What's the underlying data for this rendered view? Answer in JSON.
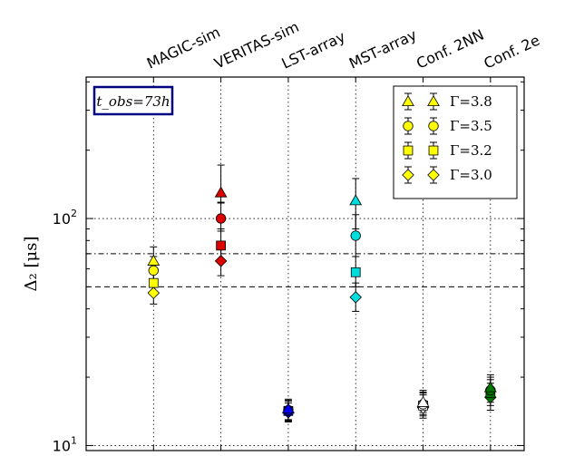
{
  "chart_data": {
    "type": "scatter",
    "title": "",
    "xlabel": "",
    "ylabel": "Δ₂ [μs]",
    "yscale": "log",
    "ylim": [
      9.5,
      420
    ],
    "y_ticks": [
      {
        "value": 10,
        "base": "10",
        "exp": "1"
      },
      {
        "value": 100,
        "base": "10",
        "exp": "2"
      }
    ],
    "categories": [
      "MAGIC-sim",
      "VERITAS-sim",
      "LST-array",
      "MST-array",
      "Conf. 2NN",
      "Conf. 2e"
    ],
    "grid": "dotted-vertical-and-horizontal",
    "legend_position": "top-right",
    "annotation": {
      "text": "t_obs=73h",
      "position": "top-left"
    },
    "reference_lines": [
      {
        "value": 70,
        "style": "dash-dot"
      },
      {
        "value": 50,
        "style": "dashed"
      }
    ],
    "series": [
      {
        "name": "Γ=3.8",
        "marker": "triangle",
        "values": [
          65,
          130,
          14.5,
          120,
          15.5,
          18
        ],
        "err_low": [
          7,
          13,
          1.5,
          30,
          1.5,
          2
        ],
        "err_high": [
          10,
          42,
          1.5,
          30,
          2,
          2.5
        ]
      },
      {
        "name": "Γ=3.5",
        "marker": "circle",
        "values": [
          59,
          100,
          14.3,
          84,
          15.2,
          17.5
        ],
        "err_low": [
          6,
          12,
          1.4,
          16,
          1.5,
          2
        ],
        "err_high": [
          9,
          18,
          1.5,
          20,
          2,
          2.5
        ]
      },
      {
        "name": "Γ=3.2",
        "marker": "square",
        "values": [
          52,
          76,
          14.2,
          58,
          15,
          17
        ],
        "err_low": [
          5,
          10,
          1.4,
          8,
          1.5,
          2
        ],
        "err_high": [
          7,
          14,
          1.5,
          10,
          2,
          2.5
        ]
      },
      {
        "name": "Γ=3.0",
        "marker": "diamond",
        "values": [
          47,
          65,
          14.0,
          45,
          14.7,
          16.3
        ],
        "err_low": [
          5,
          9,
          1.3,
          6,
          1.5,
          2
        ],
        "err_high": [
          6,
          10,
          1.4,
          7,
          2,
          2.5
        ]
      }
    ],
    "category_colors": [
      "#ffff00",
      "#dd0000",
      "#0000ff",
      "#00dddd",
      "#ffffff",
      "#007700"
    ],
    "legend_color": "#ffff00"
  }
}
